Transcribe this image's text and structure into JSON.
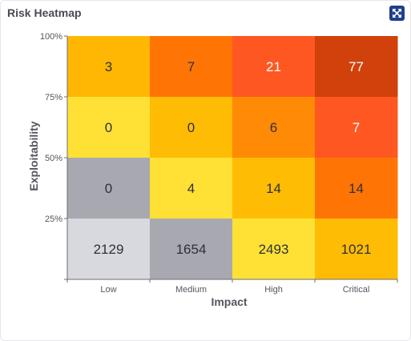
{
  "widget": {
    "title": "Risk Heatmap",
    "expand_icon": "expand-arrows-icon"
  },
  "chart_data": {
    "type": "heatmap",
    "title": "Risk Heatmap",
    "xlabel": "Impact",
    "ylabel": "Exploitability",
    "x_categories": [
      "Low",
      "Medium",
      "High",
      "Critical"
    ],
    "y_ticks": [
      "25%",
      "50%",
      "75%",
      "100%"
    ],
    "rows": [
      {
        "values": [
          3,
          7,
          21,
          77
        ],
        "colors": [
          "#ffb703",
          "#ff7505",
          "#ff5722",
          "#d1410c"
        ]
      },
      {
        "values": [
          0,
          0,
          6,
          7
        ],
        "colors": [
          "#ffe135",
          "#ffbc05",
          "#ff8a05",
          "#ff5722"
        ]
      },
      {
        "values": [
          0,
          4,
          14,
          14
        ],
        "colors": [
          "#a8a9b0",
          "#ffe135",
          "#ffbc05",
          "#ff7505"
        ]
      },
      {
        "values": [
          2129,
          1654,
          2493,
          1021
        ],
        "colors": [
          "#d8d9df",
          "#a8a9b0",
          "#ffe135",
          "#ffbc05"
        ]
      }
    ],
    "text_colors": {
      "light": "#ffffff",
      "dark": "#2f2f38"
    },
    "light_text_cells": [
      [
        0,
        2
      ],
      [
        0,
        3
      ],
      [
        1,
        3
      ]
    ]
  }
}
